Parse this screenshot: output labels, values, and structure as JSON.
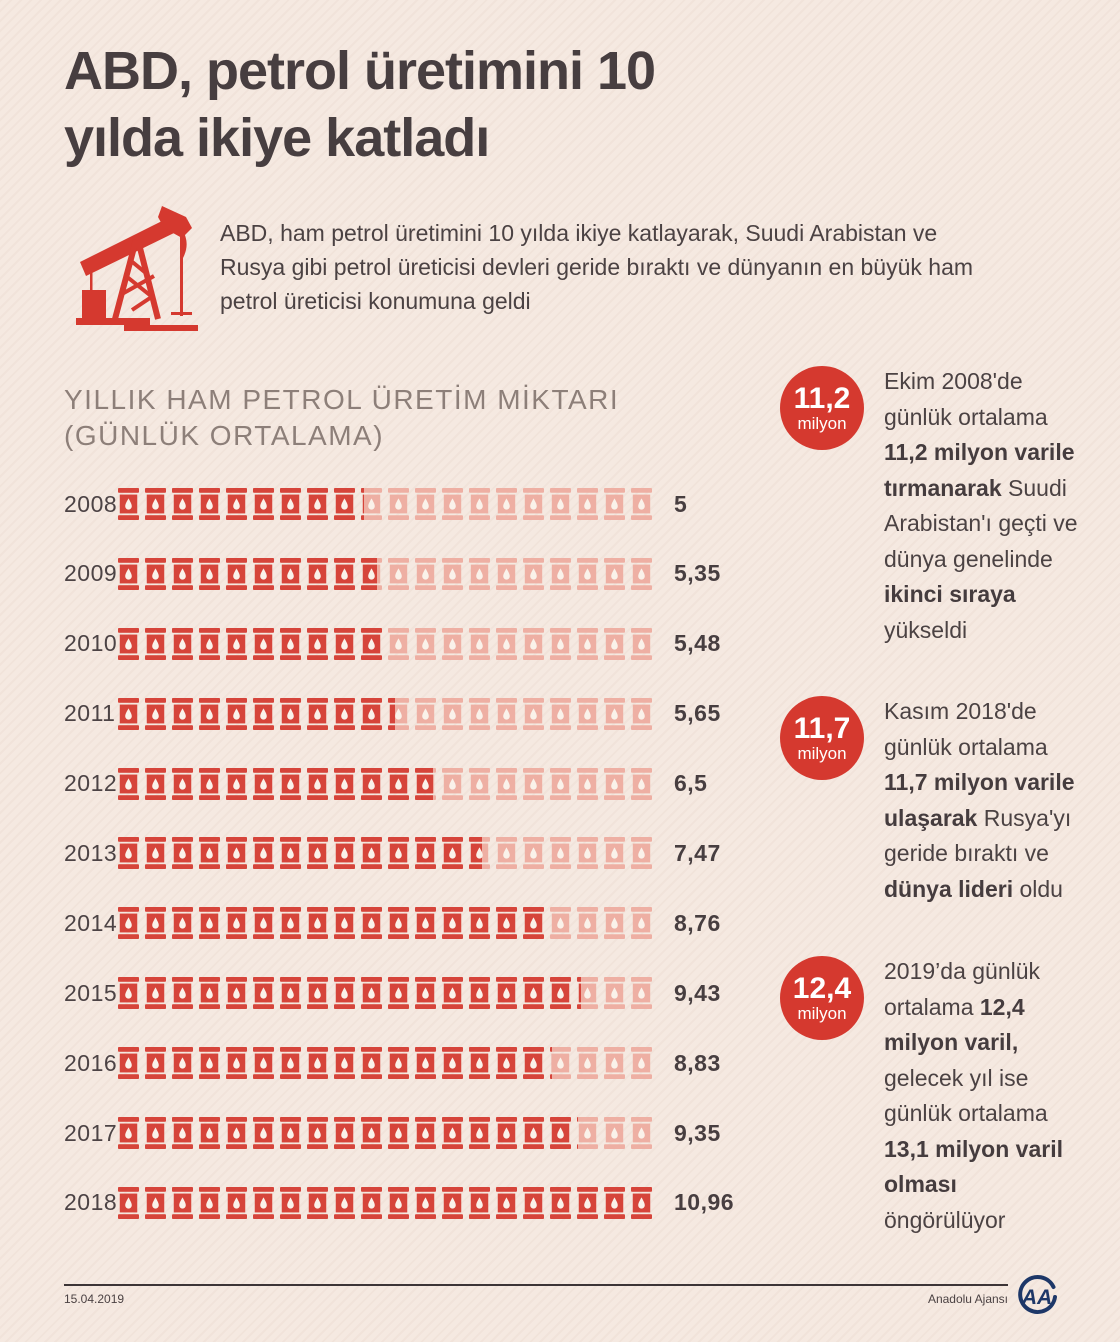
{
  "header": {
    "title": "ABD, petrol üretimini 10\nyılda ikiye katladı",
    "intro": "ABD, ham petrol üretimini 10 yılda ikiye katlayarak, Suudi Arabistan ve Rusya gibi petrol üreticisi devleri geride bıraktı ve dünyanın en büyük ham petrol üreticisi konumuna geldi"
  },
  "chart": {
    "heading": "YILLIK HAM PETROL ÜRETİM MİKTARI\n(GÜNLÜK ORTALAMA)"
  },
  "chart_data": {
    "type": "pictogram-bar",
    "title": "YILLIK HAM PETROL ÜRETİM MİKTARI (GÜNLÜK ORTALAMA)",
    "categories": [
      "2008",
      "2009",
      "2010",
      "2011",
      "2012",
      "2013",
      "2014",
      "2015",
      "2016",
      "2017",
      "2018"
    ],
    "values": [
      5,
      5.35,
      5.48,
      5.65,
      6.5,
      7.47,
      8.76,
      9.43,
      8.83,
      9.35,
      10.96
    ],
    "value_labels": [
      "5",
      "5,35",
      "5,48",
      "5,65",
      "6,5",
      "7,47",
      "8,76",
      "9,43",
      "8,83",
      "9,35",
      "10,96"
    ],
    "icon": "oil-barrel",
    "icons_per_row": 20,
    "icon_unit": 0.548,
    "xlim": [
      0,
      10.96
    ],
    "legend": "none",
    "grid": "off"
  },
  "callouts": [
    {
      "badge_value": "11,2",
      "badge_unit": "milyon",
      "segments": [
        {
          "text": "Ekim 2008'de günlük ortalama ",
          "bold": false
        },
        {
          "text": "11,2 milyon varile tırmanarak",
          "bold": true
        },
        {
          "text": " Suudi Arabistan'ı geçti ve dünya genelinde ",
          "bold": false
        },
        {
          "text": "ikinci sıraya",
          "bold": true
        },
        {
          "text": " yükseldi",
          "bold": false
        }
      ]
    },
    {
      "badge_value": "11,7",
      "badge_unit": "milyon",
      "segments": [
        {
          "text": "Kasım 2018'de günlük ortalama ",
          "bold": false
        },
        {
          "text": "11,7 milyon varile ulaşarak",
          "bold": true
        },
        {
          "text": " Rusya'yı geride bıraktı ve ",
          "bold": false
        },
        {
          "text": "dünya lideri",
          "bold": true
        },
        {
          "text": " oldu",
          "bold": false
        }
      ]
    },
    {
      "badge_value": "12,4",
      "badge_unit": "milyon",
      "segments": [
        {
          "text": "2019’da günlük ortalama ",
          "bold": false
        },
        {
          "text": "12,4 milyon varil,",
          "bold": true
        },
        {
          "text": " gelecek yıl ise günlük ortalama ",
          "bold": false
        },
        {
          "text": "13,1 milyon varil olması",
          "bold": true
        },
        {
          "text": " öngörülüyor",
          "bold": false
        }
      ]
    }
  ],
  "footer": {
    "date": "15.04.2019",
    "source": "Anadolu Ajansı",
    "logo_text": "AA"
  },
  "colors": {
    "background": "#f5e9e1",
    "red": "#d5392f",
    "barrel_filled": "#d6443a",
    "barrel_empty": "#eeafa3",
    "droplet": "#faf2ea",
    "text_dark": "#473e40",
    "text_body": "#4b4243",
    "heading_gray": "#8d7f79",
    "navy": "#1d3768"
  }
}
